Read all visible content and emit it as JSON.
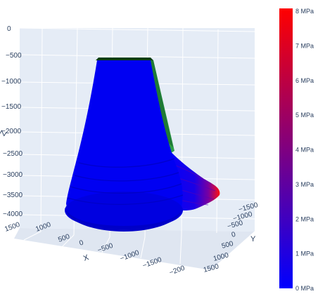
{
  "chart_data": {
    "type": "surface3d",
    "title": "",
    "colorscale": [
      "#0000ff",
      "#ff0000"
    ],
    "colorbar": {
      "range": [
        0,
        8
      ],
      "ticks": [
        "0 MPa",
        "1 MPa",
        "2 MPa",
        "3 MPa",
        "4 MPa",
        "5 MPa",
        "6 MPa",
        "7 MPa",
        "8 MPa"
      ]
    },
    "axes": {
      "x": {
        "label": "X",
        "ticks": [
          "1500",
          "1000",
          "500",
          "0",
          "−500",
          "−1000",
          "−1500",
          "−200"
        ]
      },
      "y": {
        "label": "Y",
        "ticks": [
          "−1500",
          "−1000",
          "−500",
          "0",
          "500",
          "1000",
          "1500"
        ]
      },
      "z": {
        "label": "Z",
        "ticks": [
          "0",
          "−500",
          "−1000",
          "−1500",
          "−2000",
          "−2500",
          "−3000",
          "−3500",
          "−4000"
        ]
      }
    },
    "surface": {
      "shape": "truncated cone",
      "top_color": "#0b3d14",
      "flank_color": "#2e9e48",
      "pressure_peak_mpa": 8
    },
    "grid": true,
    "legend": "colorbar-right"
  }
}
